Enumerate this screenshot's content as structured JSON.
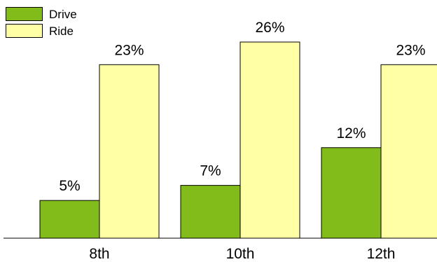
{
  "chart_data": {
    "type": "bar",
    "categories": [
      "8th",
      "10th",
      "12th"
    ],
    "series": [
      {
        "name": "Drive",
        "values": [
          5,
          7,
          12
        ],
        "labels": [
          "5%",
          "7%",
          "12%"
        ],
        "color": "#82bc1a"
      },
      {
        "name": "Ride",
        "values": [
          23,
          26,
          23
        ],
        "labels": [
          "23%",
          "26%",
          "23%"
        ],
        "color": "#ffffa6"
      }
    ],
    "title": "",
    "xlabel": "",
    "ylabel": "",
    "ylim": [
      0,
      26
    ],
    "grid": false,
    "legend_position": "top-left"
  }
}
